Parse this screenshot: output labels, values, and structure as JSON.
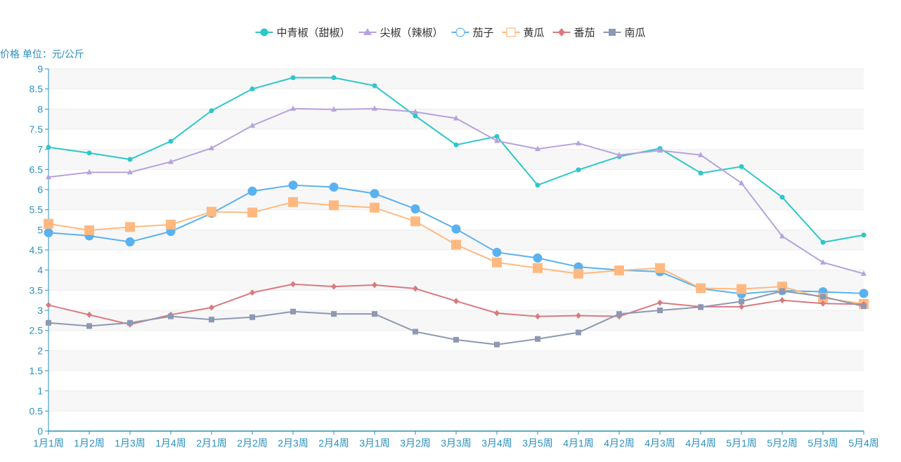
{
  "chart_data": {
    "type": "line",
    "ylabel": "价格 单位：元/公斤",
    "ylim": [
      0,
      9
    ],
    "yticks": [
      "0",
      "0.5",
      "1",
      "1.5",
      "2",
      "2.5",
      "3",
      "3.5",
      "4",
      "4.5",
      "5",
      "5.5",
      "6",
      "6.5",
      "7",
      "7.5",
      "8",
      "8.5",
      "9"
    ],
    "grid": "horizontal-banded",
    "legend_position": "top-center",
    "categories": [
      "1月1周",
      "1月2周",
      "1月3周",
      "1月4周",
      "2月1周",
      "2月2周",
      "2月3周",
      "2月4周",
      "3月1周",
      "3月2周",
      "3月3周",
      "3月4周",
      "3月5周",
      "4月1周",
      "4月2周",
      "4月3周",
      "4月4周",
      "5月1周",
      "5月2周",
      "5月3周",
      "5月4周"
    ],
    "series": [
      {
        "name": "中青椒（甜椒）",
        "color": "#2ec7c9",
        "marker": "circle",
        "values": [
          7.05,
          6.91,
          6.75,
          7.2,
          7.96,
          8.5,
          8.78,
          8.78,
          8.58,
          7.83,
          7.11,
          7.32,
          6.11,
          6.49,
          6.82,
          7.02,
          6.41,
          6.57,
          5.81,
          4.69,
          4.87
        ]
      },
      {
        "name": "尖椒（辣椒）",
        "color": "#b6a2de",
        "marker": "triangle",
        "values": [
          6.31,
          6.43,
          6.43,
          6.69,
          7.03,
          7.59,
          8.01,
          7.99,
          8.01,
          7.93,
          7.77,
          7.21,
          7.01,
          7.15,
          6.86,
          6.97,
          6.86,
          6.16,
          4.84,
          4.19,
          3.91
        ]
      },
      {
        "name": "茄子",
        "color": "#5ab1ef",
        "marker": "circle-large",
        "values": [
          4.93,
          4.85,
          4.7,
          4.96,
          5.41,
          5.96,
          6.11,
          6.06,
          5.9,
          5.52,
          5.02,
          4.44,
          4.3,
          4.08,
          4.0,
          3.96,
          3.54,
          3.41,
          3.49,
          3.46,
          3.42
        ]
      },
      {
        "name": "黄瓜",
        "color": "#ffb980",
        "marker": "square-large",
        "values": [
          5.15,
          4.99,
          5.07,
          5.13,
          5.45,
          5.43,
          5.69,
          5.61,
          5.55,
          5.21,
          4.63,
          4.19,
          4.05,
          3.91,
          3.99,
          4.05,
          3.55,
          3.53,
          3.59,
          3.31,
          3.16
        ]
      },
      {
        "name": "番茄",
        "color": "#d87a80",
        "marker": "diamond",
        "values": [
          3.13,
          2.89,
          2.65,
          2.89,
          3.07,
          3.44,
          3.65,
          3.59,
          3.63,
          3.54,
          3.23,
          2.93,
          2.85,
          2.87,
          2.85,
          3.19,
          3.09,
          3.09,
          3.25,
          3.17,
          3.15
        ]
      },
      {
        "name": "南瓜",
        "color": "#8d98b3",
        "marker": "square",
        "values": [
          2.69,
          2.61,
          2.69,
          2.85,
          2.77,
          2.83,
          2.97,
          2.91,
          2.91,
          2.47,
          2.27,
          2.15,
          2.29,
          2.45,
          2.91,
          3.0,
          3.08,
          3.22,
          3.48,
          3.34,
          3.1
        ]
      }
    ]
  }
}
